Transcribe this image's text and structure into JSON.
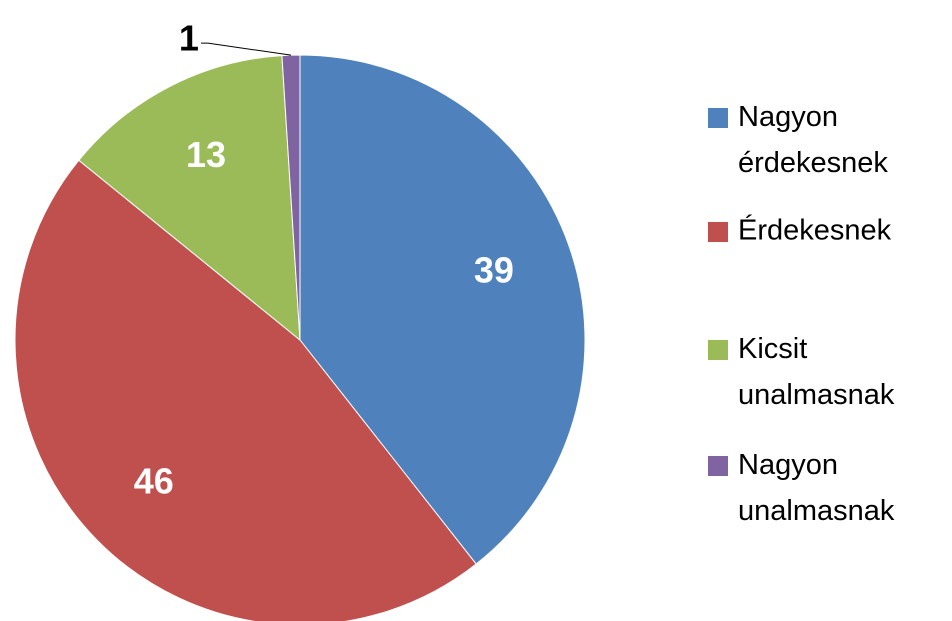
{
  "chart_data": {
    "type": "pie",
    "categories": [
      "Nagyon érdekesnek",
      "Érdekesnek",
      "Kicsit unalmasnak",
      "Nagyon unalmasnak"
    ],
    "values": [
      39,
      46,
      13,
      1
    ],
    "colors": [
      "#4f81bd",
      "#c0504d",
      "#9bbb59",
      "#8064a2"
    ],
    "start_angle": 0,
    "direction": "clockwise",
    "legend": "right"
  }
}
